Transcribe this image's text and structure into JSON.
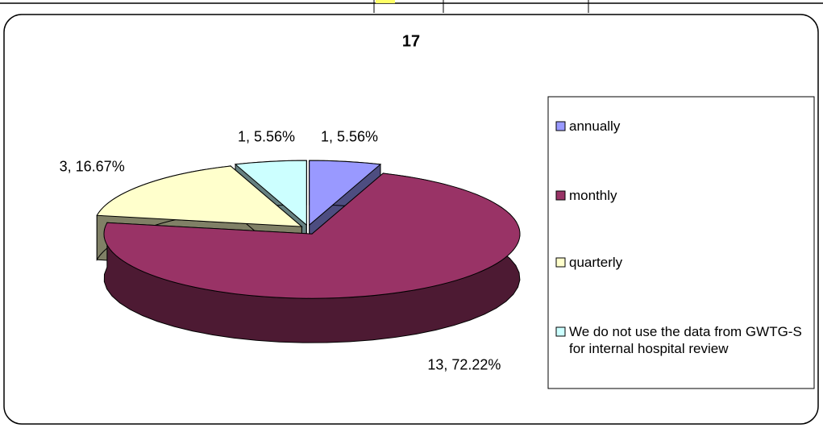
{
  "chart_data": {
    "type": "pie3d",
    "title": "17",
    "categories": [
      "annually",
      "monthly",
      "quarterly",
      "We do not use the data from GWTG-S for internal hospital review"
    ],
    "values": [
      1,
      13,
      3,
      1
    ],
    "value_labels": [
      "1, 5.56%",
      "13, 72.22%",
      "3, 16.67%",
      "1, 5.56%"
    ],
    "colors": [
      "#9999ff",
      "#993366",
      "#ffffcc",
      "#ccffff"
    ],
    "legend": "right"
  }
}
